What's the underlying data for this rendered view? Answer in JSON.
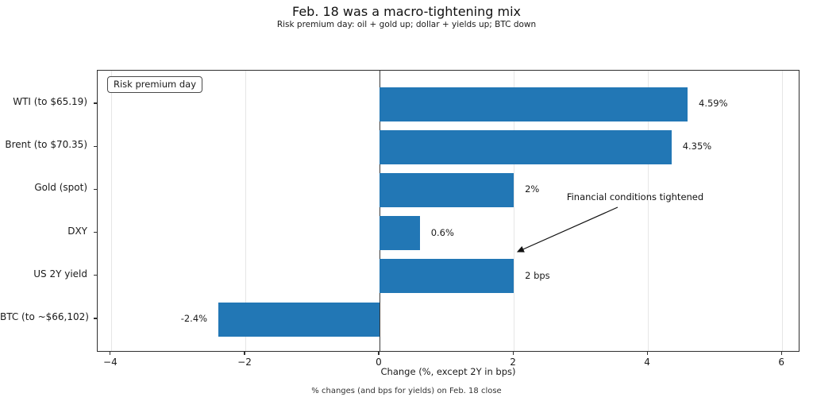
{
  "chart_data": {
    "type": "bar",
    "orientation": "horizontal",
    "title": "Feb. 18 was a macro-tightening mix",
    "subtitle": "Risk premium day: oil + gold up; dollar + yields up; BTC down",
    "categories": [
      "WTI (to $65.19)",
      "Brent (to $70.35)",
      "Gold (spot)",
      "DXY",
      "US 2Y yield",
      "BTC (to ~$66,102)"
    ],
    "values": [
      4.59,
      4.35,
      2,
      0.6,
      2,
      -2.4
    ],
    "value_labels": [
      "4.59%",
      "4.35%",
      "2%",
      "0.6%",
      "2 bps",
      "-2.4%"
    ],
    "xlabel": "Change (%, except 2Y in bps)",
    "x_ticks": [
      -4,
      -2,
      0,
      2,
      4,
      6
    ],
    "x_tick_labels": [
      "−4",
      "−2",
      "0",
      "2",
      "4",
      "6"
    ],
    "xlim": [
      -4.2,
      6.27
    ],
    "grid": true,
    "legend": {
      "label": "Risk premium day",
      "position": "upper left"
    },
    "annotation": {
      "text": "Financial conditions tightened",
      "points_to": "US 2Y yield"
    },
    "footnote": "% changes (and bps for yields) on Feb. 18 close",
    "bar_color": "#2277b5"
  }
}
